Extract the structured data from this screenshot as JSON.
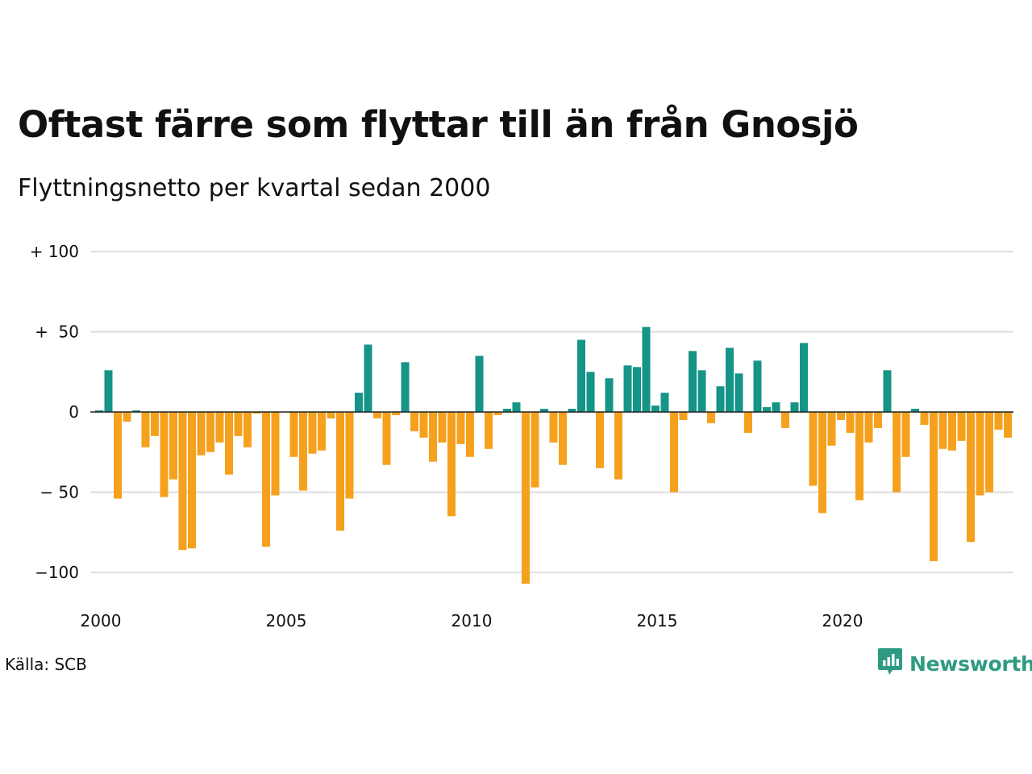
{
  "title": "Oftast färre som flyttar till än från Gnosjö",
  "subtitle": "Flyttningsnetto per kvartal sedan 2000",
  "source": "Källa: SCB",
  "brand": "Newsworthy",
  "colors": {
    "positive": "#159487",
    "negative": "#f5a11e",
    "grid": "#dddddd",
    "zero_line": "#222222",
    "brand": "#2e9a82"
  },
  "chart_data": {
    "type": "bar",
    "title": "Oftast färre som flyttar till än från Gnosjö",
    "subtitle": "Flyttningsnetto per kvartal sedan 2000",
    "xlabel": "",
    "ylabel": "",
    "ylim": [
      -110,
      110
    ],
    "yticks": [
      {
        "value": 100,
        "label": "+ 100"
      },
      {
        "value": 50,
        "label": "+  50"
      },
      {
        "value": 0,
        "label": "0"
      },
      {
        "value": -50,
        "label": "− 50"
      },
      {
        "value": -100,
        "label": "−100"
      }
    ],
    "xticks": [
      {
        "value": 2000,
        "label": "2000"
      },
      {
        "value": 2005,
        "label": "2005"
      },
      {
        "value": 2010,
        "label": "2010"
      },
      {
        "value": 2015,
        "label": "2015"
      },
      {
        "value": 2020,
        "label": "2020"
      }
    ],
    "grid": true,
    "legend": "none",
    "first_period": "2000 Q1",
    "period": "quarter",
    "values": [
      1,
      26,
      -54,
      -6,
      1,
      -22,
      -15,
      -53,
      -42,
      -86,
      -85,
      -27,
      -25,
      -19,
      -39,
      -15,
      -22,
      -1,
      -84,
      -52,
      0,
      -28,
      -49,
      -26,
      -24,
      -4,
      -74,
      -54,
      12,
      42,
      -4,
      -33,
      -2,
      31,
      -12,
      -16,
      -31,
      -19,
      -65,
      -20,
      -28,
      35,
      -23,
      -2,
      2,
      6,
      -107,
      -47,
      2,
      -19,
      -33,
      2,
      45,
      25,
      -35,
      21,
      -42,
      29,
      28,
      53,
      4,
      12,
      -50,
      -5,
      38,
      26,
      -7,
      16,
      40,
      24,
      -13,
      32,
      3,
      6,
      -10,
      6,
      43,
      -46,
      -63,
      -21,
      -5,
      -13,
      -55,
      -19,
      -10,
      26,
      -50,
      -28,
      2,
      -8,
      -93,
      -23,
      -24,
      -18,
      -81,
      -52,
      -50,
      -11,
      -16
    ]
  }
}
